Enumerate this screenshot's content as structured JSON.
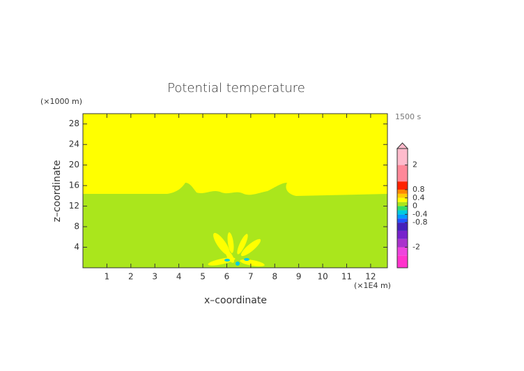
{
  "chart_data": {
    "type": "contour",
    "title": "Potential temperature",
    "xlabel": "x–coordinate",
    "ylabel": "z–coordinate",
    "x_unit": "(×1E4 m)",
    "y_unit": "(×1000 m)",
    "time_label": "1500 s",
    "xlim": [
      0,
      12.7
    ],
    "xticks": [
      1,
      2,
      3,
      4,
      5,
      6,
      7,
      8,
      9,
      10,
      11,
      12
    ],
    "ylim": [
      0,
      30
    ],
    "yticks": [
      4,
      8,
      12,
      16,
      20,
      24,
      28
    ],
    "colorbar": {
      "lim": [
        -3,
        2.8
      ],
      "ticks": [
        2,
        0.8,
        0.4,
        0,
        -0.4,
        -0.8,
        -2
      ],
      "levels": [
        -3,
        -2.4,
        -2,
        -1.6,
        -1.2,
        -0.8,
        -0.6,
        -0.4,
        -0.2,
        0,
        0.2,
        0.4,
        0.6,
        0.8,
        1.2,
        2,
        2.8
      ],
      "colors": [
        "#ff33cc",
        "#ee44dd",
        "#aa33cc",
        "#7722cc",
        "#4422bb",
        "#2255ff",
        "#0099ff",
        "#00ccdd",
        "#33dd66",
        "#aae61c",
        "#ffff00",
        "#ffcc00",
        "#ff8800",
        "#ff2200",
        "#ff8899",
        "#ffbbcc"
      ]
    }
  }
}
